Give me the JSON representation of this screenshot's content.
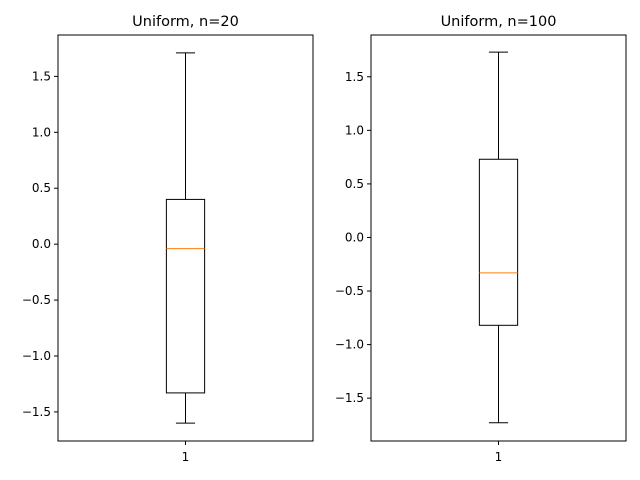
{
  "chart_data": [
    {
      "type": "boxplot",
      "title": "Uniform, n=20",
      "xlabel": "",
      "ylabel": "",
      "ylim": [
        -1.76,
        1.87
      ],
      "yticks": [
        -1.5,
        -1.0,
        -0.5,
        0.0,
        0.5,
        1.0,
        1.5
      ],
      "ytick_labels": [
        "−1.5",
        "−1.0",
        "−0.5",
        "0.0",
        "0.5",
        "1.0",
        "1.5"
      ],
      "categories": [
        "1"
      ],
      "boxes": [
        {
          "whisker_low": -1.6,
          "q1": -1.33,
          "median": -0.04,
          "q3": 0.4,
          "whisker_high": 1.71
        }
      ]
    },
    {
      "type": "boxplot",
      "title": "Uniform, n=100",
      "xlabel": "",
      "ylabel": "",
      "ylim": [
        -1.9,
        1.89
      ],
      "yticks": [
        -1.5,
        -1.0,
        -0.5,
        0.0,
        0.5,
        1.0,
        1.5
      ],
      "ytick_labels": [
        "−1.5",
        "−1.0",
        "−0.5",
        "0.0",
        "0.5",
        "1.0",
        "1.5"
      ],
      "categories": [
        "1"
      ],
      "boxes": [
        {
          "whisker_low": -1.73,
          "q1": -0.82,
          "median": -0.33,
          "q3": 0.73,
          "whisker_high": 1.73
        }
      ]
    }
  ],
  "colors": {
    "box": "#000000",
    "median": "#ff7f0e",
    "axes": "#000000"
  }
}
